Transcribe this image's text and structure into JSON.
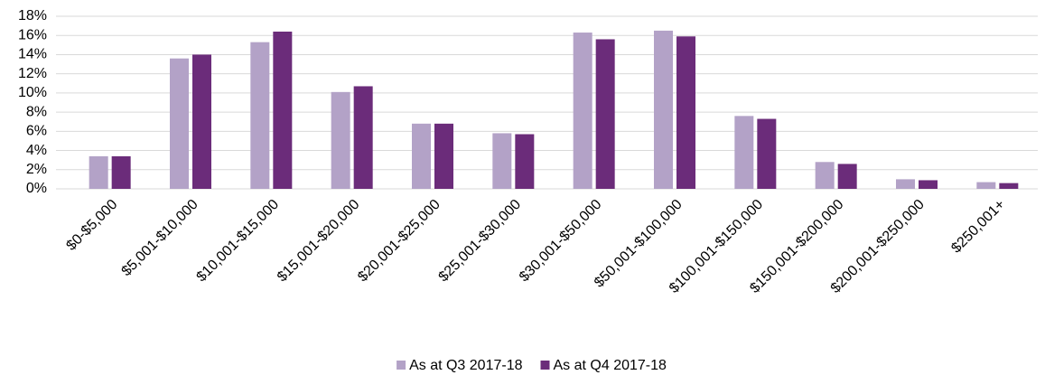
{
  "chart_data": {
    "type": "bar",
    "categories": [
      "$0-$5,000",
      "$5,001-$10,000",
      "$10,001-$15,000",
      "$15,001-$20,000",
      "$20,001-$25,000",
      "$25,001-$30,000",
      "$30,001-$50,000",
      "$50,001-$100,000",
      "$100,001-$150,000",
      "$150,001-$200,000",
      "$200,001-$250,000",
      "$250,001+"
    ],
    "series": [
      {
        "name": "As at Q3 2017-18",
        "color": "#b3a2c7",
        "values": [
          3.4,
          13.6,
          15.3,
          10.1,
          6.8,
          5.8,
          16.3,
          16.5,
          7.6,
          2.8,
          1.0,
          0.7
        ]
      },
      {
        "name": "As at Q4 2017-18",
        "color": "#6b2c7a",
        "values": [
          3.4,
          14.0,
          16.4,
          10.7,
          6.8,
          5.7,
          15.6,
          15.9,
          7.3,
          2.6,
          0.9,
          0.6
        ]
      }
    ],
    "ylim": [
      0,
      18
    ],
    "yticks": [
      {
        "value": 0,
        "label": "0%"
      },
      {
        "value": 2,
        "label": "2%"
      },
      {
        "value": 4,
        "label": "4%"
      },
      {
        "value": 6,
        "label": "6%"
      },
      {
        "value": 8,
        "label": "8%"
      },
      {
        "value": 10,
        "label": "10%"
      },
      {
        "value": 12,
        "label": "12%"
      },
      {
        "value": 14,
        "label": "14%"
      },
      {
        "value": 16,
        "label": "16%"
      },
      {
        "value": 18,
        "label": "18%"
      }
    ],
    "grid": true,
    "legend": "bottom"
  }
}
